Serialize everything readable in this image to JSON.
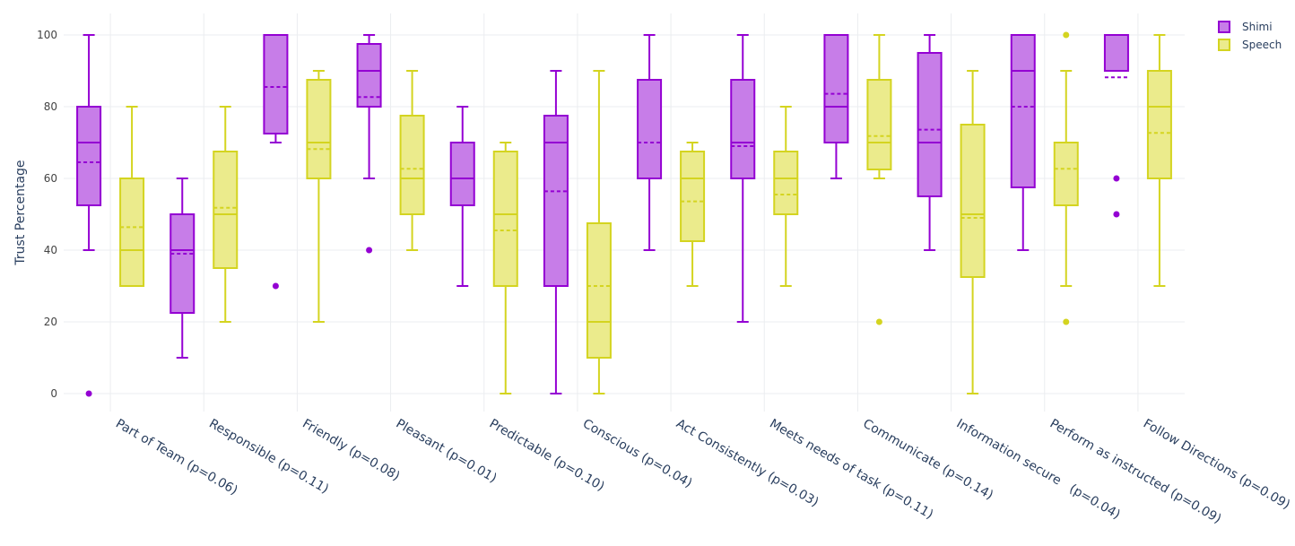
{
  "chart_data": {
    "type": "box",
    "title": "",
    "xlabel": "",
    "ylabel": "Trust Percentage",
    "ylim": [
      -5,
      106
    ],
    "yticks": [
      0,
      20,
      40,
      60,
      80,
      100
    ],
    "grid": true,
    "legend_position": "top-right",
    "categories": [
      "Part of Team (p=0.06)",
      "Responsible (p=0.11)",
      "Friendly (p=0.08)",
      "Pleasant (p=0.01)",
      "Predictable (p=0.10)",
      "Conscious (p=0.04)",
      "Act Consistently (p=0.03)",
      "Meets needs of task (p=0.11)",
      "Communicate (p=0.14)",
      "Information secure   (p=0.04)",
      "Perform as instructed (p=0.09)",
      "Follow Directions (p=0.09)"
    ],
    "series": [
      {
        "name": "Shimi",
        "color": "#9400d3",
        "fill": "#c77de8",
        "boxes": [
          {
            "min": 40,
            "q1": 52.5,
            "median": 70,
            "q3": 80,
            "max": 100,
            "mean": 64.5,
            "outliers": [
              0
            ]
          },
          {
            "min": 10,
            "q1": 22.5,
            "median": 40,
            "q3": 50,
            "max": 60,
            "mean": 39,
            "outliers": []
          },
          {
            "min": 70,
            "q1": 72.5,
            "median": 100,
            "q3": 100,
            "max": 100,
            "mean": 85.5,
            "outliers": [
              30
            ]
          },
          {
            "min": 60,
            "q1": 80,
            "median": 90,
            "q3": 97.5,
            "max": 100,
            "mean": 82.7,
            "outliers": [
              40
            ]
          },
          {
            "min": 30,
            "q1": 52.5,
            "median": 60,
            "q3": 70,
            "max": 80,
            "mean": 60,
            "outliers": []
          },
          {
            "min": 0,
            "q1": 30,
            "median": 70,
            "q3": 77.5,
            "max": 90,
            "mean": 56.4,
            "outliers": []
          },
          {
            "min": 40,
            "q1": 60,
            "median": 60,
            "q3": 87.5,
            "max": 100,
            "mean": 70,
            "outliers": []
          },
          {
            "min": 20,
            "q1": 60,
            "median": 70,
            "q3": 87.5,
            "max": 100,
            "mean": 69,
            "outliers": []
          },
          {
            "min": 60,
            "q1": 70,
            "median": 80,
            "q3": 100,
            "max": 100,
            "mean": 83.6,
            "outliers": []
          },
          {
            "min": 40,
            "q1": 55,
            "median": 70,
            "q3": 95,
            "max": 100,
            "mean": 73.6,
            "outliers": []
          },
          {
            "min": 40,
            "q1": 57.5,
            "median": 90,
            "q3": 100,
            "max": 100,
            "mean": 80,
            "outliers": []
          },
          {
            "min": 90,
            "q1": 90,
            "median": 90,
            "q3": 100,
            "max": 100,
            "mean": 88.2,
            "outliers": [
              60,
              50
            ]
          }
        ]
      },
      {
        "name": "Speech",
        "color": "#d4d420",
        "fill": "#ebeb8c",
        "boxes": [
          {
            "min": 30,
            "q1": 30,
            "median": 40,
            "q3": 60,
            "max": 80,
            "mean": 46.4,
            "outliers": []
          },
          {
            "min": 20,
            "q1": 35,
            "median": 50,
            "q3": 67.5,
            "max": 80,
            "mean": 51.8,
            "outliers": []
          },
          {
            "min": 20,
            "q1": 60,
            "median": 70,
            "q3": 87.5,
            "max": 90,
            "mean": 68.2,
            "outliers": []
          },
          {
            "min": 40,
            "q1": 50,
            "median": 60,
            "q3": 77.5,
            "max": 90,
            "mean": 62.7,
            "outliers": []
          },
          {
            "min": 0,
            "q1": 30,
            "median": 50,
            "q3": 67.5,
            "max": 70,
            "mean": 45.5,
            "outliers": []
          },
          {
            "min": 0,
            "q1": 10,
            "median": 20,
            "q3": 47.5,
            "max": 90,
            "mean": 30,
            "outliers": []
          },
          {
            "min": 30,
            "q1": 42.5,
            "median": 60,
            "q3": 67.5,
            "max": 70,
            "mean": 53.6,
            "outliers": []
          },
          {
            "min": 30,
            "q1": 50,
            "median": 60,
            "q3": 67.5,
            "max": 80,
            "mean": 55.5,
            "outliers": []
          },
          {
            "min": 60,
            "q1": 62.5,
            "median": 70,
            "q3": 87.5,
            "max": 100,
            "mean": 71.8,
            "outliers": [
              20
            ]
          },
          {
            "min": 0,
            "q1": 32.5,
            "median": 50,
            "q3": 75,
            "max": 90,
            "mean": 49,
            "outliers": []
          },
          {
            "min": 30,
            "q1": 52.5,
            "median": 70,
            "q3": 70,
            "max": 90,
            "mean": 62.7,
            "outliers": [
              100,
              20
            ]
          },
          {
            "min": 30,
            "q1": 60,
            "median": 80,
            "q3": 90,
            "max": 100,
            "mean": 72.7,
            "outliers": []
          }
        ]
      }
    ]
  }
}
